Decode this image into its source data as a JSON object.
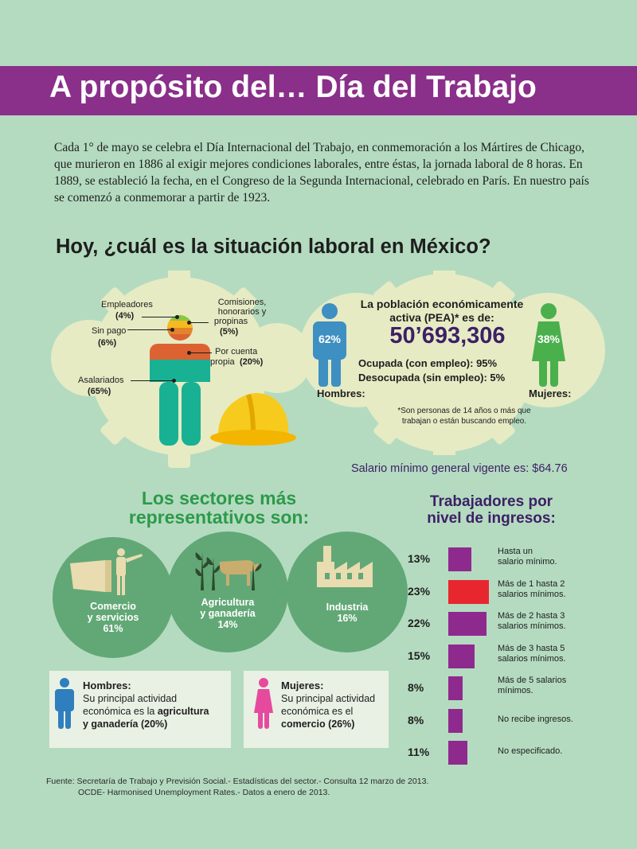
{
  "header": {
    "title": "A propósito del… Día del Trabajo"
  },
  "intro": "Cada 1° de mayo se celebra el Día Internacional del Trabajo, en conmemoración a los Mártires de Chicago, que murieron en 1886 al exigir mejores condiciones laborales, entre éstas, la jornada laboral de 8 horas. En 1889, se estableció la fecha, en el Congreso de la Segunda Internacional, celebrado en París. En nuestro país se comenzó a conmemorar a partir de 1923.",
  "situation": {
    "title": "Hoy, ¿cuál es la situación laboral en México?",
    "segments": [
      {
        "label": "Empleadores",
        "value": "(4%)",
        "color": "#8cc641"
      },
      {
        "label": "Sin pago",
        "value": "(6%)",
        "color": "#f5b921"
      },
      {
        "label": "Comisiones, honorarios y propinas",
        "value": "(5%)",
        "color": "#e2842b"
      },
      {
        "label": "Por cuenta propia",
        "value": "(20%)",
        "color": "#dd6232"
      },
      {
        "label": "Asalariados",
        "value": "(65%)",
        "color": "#18b193"
      }
    ],
    "label_lines": {
      "empleadores": "Empleadores",
      "empleadores_pct": "(4%)",
      "sin_pago": "Sin pago",
      "sin_pago_pct": "(6%)",
      "comisiones_1": "Comisiones,",
      "comisiones_2": "honorarios y",
      "comisiones_3": "propinas",
      "comisiones_pct": "(5%)",
      "cuenta_1": "Por cuenta",
      "cuenta_2": "propia",
      "cuenta_pct": "(20%)",
      "asalariados": "Asalariados",
      "asalariados_pct": "(65%)"
    }
  },
  "pea": {
    "title_1": "La población económicamente",
    "title_2": "activa (PEA)* es de:",
    "number": "50’693,306",
    "ocupada": "Ocupada (con empleo): 95%",
    "desocupada": "Desocupada (sin empleo): 5%",
    "note_1": "*Son personas de 14 años o más que",
    "note_2": "trabajan o están buscando empleo.",
    "hombres_label": "Hombres:",
    "hombres_pct": "62%",
    "mujeres_label": "Mujeres:",
    "mujeres_pct": "38%"
  },
  "salario": "Salario mínimo general vigente es: $64.76",
  "sectors": {
    "title_1": "Los sectores más",
    "title_2": "representativos son:",
    "items": [
      {
        "line1": "Comercio",
        "line2": "y servicios",
        "pct": "61%"
      },
      {
        "line1": "Agricultura",
        "line2": "y ganadería",
        "pct": "14%"
      },
      {
        "line1": "Industria",
        "line2": "",
        "pct": "16%"
      }
    ]
  },
  "hombres_box": {
    "title": "Hombres:",
    "line1": "Su principal actividad",
    "line2a": "económica es la ",
    "line2b": "agricultura",
    "line3": "y ganadería (20%)"
  },
  "mujeres_box": {
    "title": "Mujeres:",
    "line1": "Su principal actividad",
    "line2": "económica es el",
    "line3a": "comercio",
    "line3b": " (26%)"
  },
  "income": {
    "title_1": "Trabajadores por",
    "title_2": "nivel de ingresos:",
    "rows": [
      {
        "pct": "13%",
        "value": 13,
        "color": "#8e2a8e",
        "l1": "Hasta un",
        "l2": "salario mínimo."
      },
      {
        "pct": "23%",
        "value": 23,
        "color": "#e8262e",
        "l1": "Más de 1 hasta 2",
        "l2": "salarios mínimos."
      },
      {
        "pct": "22%",
        "value": 22,
        "color": "#8e2a8e",
        "l1": "Más de 2 hasta 3",
        "l2": "salarios mínimos."
      },
      {
        "pct": "15%",
        "value": 15,
        "color": "#8e2a8e",
        "l1": "Más de 3 hasta 5",
        "l2": "salarios mínimos."
      },
      {
        "pct": "8%",
        "value": 8,
        "color": "#8e2a8e",
        "l1": "Más de 5 salarios",
        "l2": "mínimos."
      },
      {
        "pct": "8%",
        "value": 8,
        "color": "#8e2a8e",
        "l1": "No recibe ingresos.",
        "l2": ""
      },
      {
        "pct": "11%",
        "value": 11,
        "color": "#8e2a8e",
        "l1": "No especificado.",
        "l2": ""
      }
    ]
  },
  "source": {
    "line1": "Fuente: Secretaría de Trabajo y Previsión Social.- Estadísticas del sector.- Consulta 12 marzo de 2013.",
    "line2": "OCDE- Harmonised Unemployment Rates.- Datos a enero de 2013."
  },
  "colors": {
    "background": "#b4dbc0",
    "header": "#8a2f8a",
    "men": "#3e8fc2",
    "women": "#4ab04c",
    "sector_circle": "#62a876",
    "accent_purple": "#3d2066"
  },
  "icons": [
    "worker-figure-icon",
    "hard-hat-icon",
    "man-icon",
    "woman-icon",
    "store-icon",
    "farm-icon",
    "factory-icon"
  ]
}
